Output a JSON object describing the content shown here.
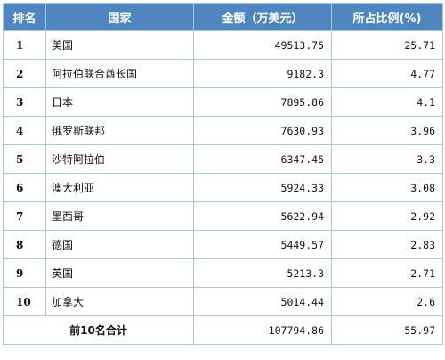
{
  "table": {
    "headers": [
      "排名",
      "国家",
      "金额（万美元）",
      "所占比例(%)"
    ],
    "rows": [
      {
        "rank": "1",
        "country": "美国",
        "amount": "49513.75",
        "share": "25.71"
      },
      {
        "rank": "2",
        "country": "阿拉伯联合酋长国",
        "amount": "9182.3",
        "share": "4.77"
      },
      {
        "rank": "3",
        "country": "日本",
        "amount": "7895.86",
        "share": "4.1"
      },
      {
        "rank": "4",
        "country": "俄罗斯联邦",
        "amount": "7630.93",
        "share": "3.96"
      },
      {
        "rank": "5",
        "country": "沙特阿拉伯",
        "amount": "6347.45",
        "share": "3.3"
      },
      {
        "rank": "6",
        "country": "澳大利亚",
        "amount": "5924.33",
        "share": "3.08"
      },
      {
        "rank": "7",
        "country": "墨西哥",
        "amount": "5622.94",
        "share": "2.92"
      },
      {
        "rank": "8",
        "country": "德国",
        "amount": "5449.57",
        "share": "2.83"
      },
      {
        "rank": "9",
        "country": "英国",
        "amount": "5213.3",
        "share": "2.71"
      },
      {
        "rank": "10",
        "country": "加拿大",
        "amount": "5014.44",
        "share": "2.6"
      }
    ],
    "total": {
      "label": "前10名合计",
      "amount": "107794.86",
      "share": "55.97"
    }
  },
  "colors": {
    "header_bg": "#4f86c0",
    "border": "#a9c6de"
  }
}
